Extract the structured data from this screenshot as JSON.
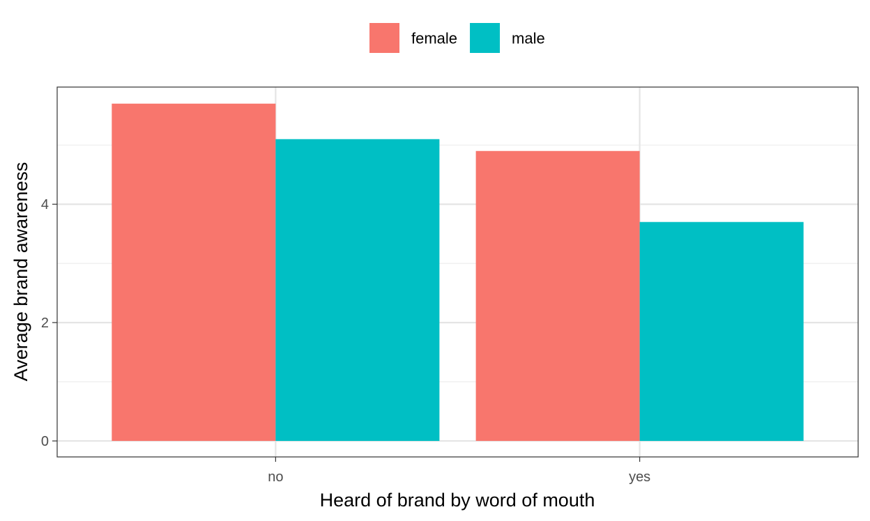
{
  "chart_data": {
    "type": "bar",
    "xlabel": "Heard of brand by word of mouth",
    "ylabel": "Average brand awareness",
    "categories": [
      "no",
      "yes"
    ],
    "series": [
      {
        "name": "female",
        "color": "#F8766D",
        "values": [
          5.7,
          4.9
        ]
      },
      {
        "name": "male",
        "color": "#00BFC4",
        "values": [
          5.1,
          3.7
        ]
      }
    ],
    "ylim": [
      -0.27,
      5.98
    ],
    "yticks": [
      0,
      2,
      4
    ],
    "ytick_labels": [
      "0",
      "2",
      "4"
    ],
    "grid": true,
    "legend_position": "top",
    "theme": "bw"
  }
}
